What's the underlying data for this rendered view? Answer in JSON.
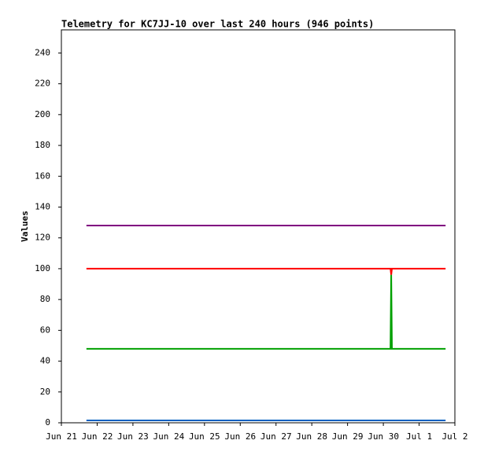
{
  "chart_data": {
    "type": "line",
    "title": "Telemetry for KC7JJ-10 over last 240 hours (946 points)",
    "y_label": "Values",
    "x": [
      21.7,
      30.2,
      30.22,
      30.24,
      31.74
    ],
    "xlim": [
      21,
      32
    ],
    "xticks": [
      {
        "value": 21,
        "label": "Jun 21"
      },
      {
        "value": 22,
        "label": "Jun 22"
      },
      {
        "value": 23,
        "label": "Jun 23"
      },
      {
        "value": 24,
        "label": "Jun 24"
      },
      {
        "value": 25,
        "label": "Jun 25"
      },
      {
        "value": 26,
        "label": "Jun 26"
      },
      {
        "value": 27,
        "label": "Jun 27"
      },
      {
        "value": 28,
        "label": "Jun 28"
      },
      {
        "value": 29,
        "label": "Jun 29"
      },
      {
        "value": 30,
        "label": "Jun 30"
      },
      {
        "value": 31,
        "label": "Jul 1"
      },
      {
        "value": 32,
        "label": "Jul 2"
      }
    ],
    "ylim": [
      0,
      255
    ],
    "yticks": [
      0,
      20,
      40,
      60,
      80,
      100,
      120,
      140,
      160,
      180,
      200,
      220,
      240
    ],
    "series": [
      {
        "color": "#800080",
        "values": [
          128,
          128,
          128,
          128,
          128
        ]
      },
      {
        "color": "#ff0000",
        "values": [
          100,
          100,
          96,
          100,
          100
        ]
      },
      {
        "color": "#00a000",
        "values": [
          48,
          48,
          96,
          48,
          48
        ]
      },
      {
        "color": "#0060c0",
        "values": [
          1.5,
          1.5,
          1.5,
          1.5,
          1.5
        ]
      }
    ]
  }
}
